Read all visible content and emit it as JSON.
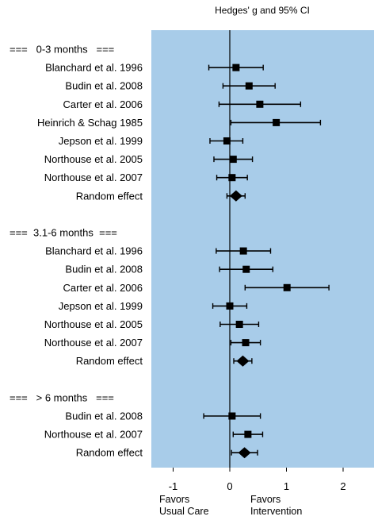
{
  "chart_data": {
    "type": "forest",
    "title": "Hedges' g and 95% CI",
    "xlim": [
      -1.4,
      2.55
    ],
    "xticks": [
      -1,
      0,
      1,
      2
    ],
    "xtick_labels": [
      "-1",
      "0",
      "1",
      "2"
    ],
    "reference_line": 0,
    "background_color": "#a8cce9",
    "left_caption": [
      "Favors",
      "Usual Care"
    ],
    "right_caption": [
      "Favors",
      "Intervention"
    ],
    "rows": [
      {
        "type": "header",
        "label": "===   0-3 months   ==="
      },
      {
        "type": "study",
        "label": "Blanchard et al. 1996",
        "g": 0.11,
        "lo": -0.37,
        "hi": 0.59
      },
      {
        "type": "study",
        "label": "Budin et al. 2008",
        "g": 0.34,
        "lo": -0.12,
        "hi": 0.8
      },
      {
        "type": "study",
        "label": "Carter et al. 2006",
        "g": 0.53,
        "lo": -0.19,
        "hi": 1.25
      },
      {
        "type": "study",
        "label": "Heinrich & Schag 1985",
        "g": 0.82,
        "lo": 0.02,
        "hi": 1.6
      },
      {
        "type": "study",
        "label": "Jepson et al. 1999",
        "g": -0.05,
        "lo": -0.35,
        "hi": 0.23
      },
      {
        "type": "study",
        "label": "Northouse et al. 2005",
        "g": 0.06,
        "lo": -0.28,
        "hi": 0.4
      },
      {
        "type": "study",
        "label": "Northouse et al. 2007",
        "g": 0.04,
        "lo": -0.23,
        "hi": 0.31
      },
      {
        "type": "summary",
        "label": "Random effect",
        "g": 0.11,
        "lo": -0.05,
        "hi": 0.27
      },
      {
        "type": "blank",
        "label": ""
      },
      {
        "type": "header",
        "label": "===  3.1-6 months  ==="
      },
      {
        "type": "study",
        "label": "Blanchard et al. 1996",
        "g": 0.24,
        "lo": -0.24,
        "hi": 0.72
      },
      {
        "type": "study",
        "label": "Budin et al. 2008",
        "g": 0.29,
        "lo": -0.18,
        "hi": 0.76
      },
      {
        "type": "study",
        "label": "Carter et al. 2006",
        "g": 1.01,
        "lo": 0.27,
        "hi": 1.75
      },
      {
        "type": "study",
        "label": "Jepson et al. 1999",
        "g": 0.0,
        "lo": -0.3,
        "hi": 0.3
      },
      {
        "type": "study",
        "label": "Northouse et al. 2005",
        "g": 0.17,
        "lo": -0.17,
        "hi": 0.51
      },
      {
        "type": "study",
        "label": "Northouse et al. 2007",
        "g": 0.28,
        "lo": 0.02,
        "hi": 0.54
      },
      {
        "type": "summary",
        "label": "Random effect",
        "g": 0.23,
        "lo": 0.07,
        "hi": 0.39
      },
      {
        "type": "blank",
        "label": ""
      },
      {
        "type": "header",
        "label": "===   > 6 months   ==="
      },
      {
        "type": "study",
        "label": "Budin et al. 2008",
        "g": 0.04,
        "lo": -0.46,
        "hi": 0.54
      },
      {
        "type": "study",
        "label": "Northouse et al. 2007",
        "g": 0.32,
        "lo": 0.06,
        "hi": 0.58
      },
      {
        "type": "summary",
        "label": "Random effect",
        "g": 0.26,
        "lo": 0.03,
        "hi": 0.49
      }
    ]
  }
}
